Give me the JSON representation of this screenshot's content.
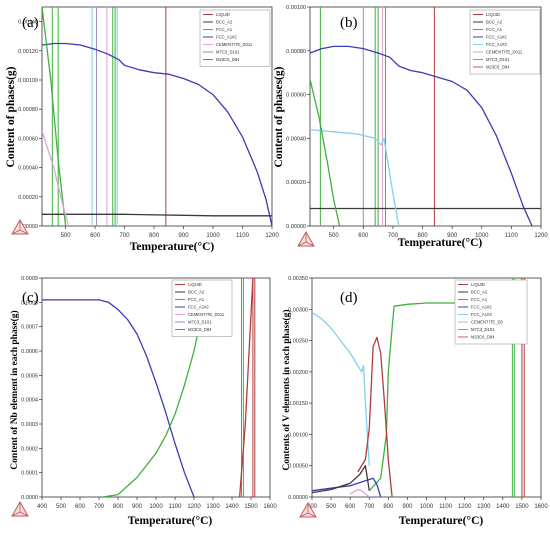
{
  "chart_data": [
    {
      "type": "line",
      "panel_label": "(a)",
      "xlabel": "Temperature(°C)",
      "ylabel": "Content of phases(g)",
      "xlim": [
        420,
        1200
      ],
      "ylim": [
        0,
        0.0015
      ],
      "x_ticks": [
        500,
        600,
        700,
        800,
        900,
        1000,
        1100,
        1200
      ],
      "x_tick_labels": [
        "500",
        "600",
        "700",
        "800",
        "900",
        "1000",
        "1100",
        "1200"
      ],
      "y_ticks": [
        0,
        0.0002,
        0.0004,
        0.0006,
        0.0008,
        0.001,
        0.0012,
        0.0014
      ],
      "y_tick_labels": [
        "0.00000",
        "0.00020",
        "0.00040",
        "0.00060",
        "0.00080",
        "0.00100",
        "0.00120",
        "0.00140"
      ],
      "legend": {
        "position": "top-right",
        "entries": [
          "LIQUID",
          "BCC_A2",
          "FCC_A1",
          "FCC_A1#2",
          "CEMENTITE_D011",
          "M7C3_D101",
          "M23C6_D84"
        ]
      },
      "series": [
        {
          "name": "FCC_A1#2",
          "color": "#3c3cb4",
          "x": [
            420,
            460,
            500,
            550,
            600,
            640,
            660,
            680,
            700,
            750,
            800,
            850,
            900,
            950,
            1000,
            1050,
            1100,
            1150,
            1180,
            1200
          ],
          "y": [
            0.00124,
            0.00125,
            0.00125,
            0.00124,
            0.00121,
            0.00118,
            0.00116,
            0.00114,
            0.0011,
            0.00107,
            0.00105,
            0.00104,
            0.00101,
            0.00097,
            0.0009,
            0.00078,
            0.00061,
            0.00037,
            0.00018,
            0.0
          ]
        },
        {
          "name": "BCC_A2",
          "color": "#3a3a3a",
          "x": [
            420,
            700,
            1000,
            1200
          ],
          "y": [
            8e-05,
            8e-05,
            7e-05,
            7e-05
          ]
        },
        {
          "name": "FCC_A1",
          "color": "#40b040",
          "x": [
            420,
            450,
            475,
            500
          ],
          "y": [
            0.0015,
            0.001,
            0.00045,
            0.0
          ]
        },
        {
          "name": "CEMENTITE_D011",
          "color": "#e4a0d8",
          "x": [
            420,
            460,
            490,
            510
          ],
          "y": [
            0.00065,
            0.0004,
            0.00015,
            0.0
          ]
        },
        {
          "name": "M23C6_D84",
          "color": "#b03c3c",
          "x": [
            840,
            840
          ],
          "y": [
            0,
            0.0015
          ]
        },
        {
          "name": "M7C3_D101",
          "color": "#9a8ac0",
          "x": [
            605,
            605
          ],
          "y": [
            0,
            0.0015
          ]
        }
      ],
      "vertical_lines": [
        {
          "x": 455,
          "color": "#40b040"
        },
        {
          "x": 475,
          "color": "#40b040"
        },
        {
          "x": 590,
          "color": "#80d0f0"
        },
        {
          "x": 605,
          "color": "#9a8ac0"
        },
        {
          "x": 640,
          "color": "#e4a0d8"
        },
        {
          "x": 660,
          "color": "#40b040"
        },
        {
          "x": 668,
          "color": "#40b040"
        },
        {
          "x": 675,
          "color": "#80d0f0"
        },
        {
          "x": 840,
          "color": "#b03c3c"
        }
      ]
    },
    {
      "type": "line",
      "panel_label": "(b)",
      "xlabel": "Temperature(°C)",
      "ylabel": "Content of phases(g)",
      "xlim": [
        420,
        1200
      ],
      "ylim": [
        0,
        0.001
      ],
      "x_ticks": [
        500,
        600,
        700,
        800,
        900,
        1000,
        1100,
        1200
      ],
      "x_tick_labels": [
        "500",
        "600",
        "700",
        "800",
        "900",
        "1000",
        "1100",
        "1200"
      ],
      "y_ticks": [
        0,
        0.0002,
        0.0004,
        0.0006,
        0.0008,
        0.001
      ],
      "y_tick_labels": [
        "0.00000",
        "0.00020",
        "0.00040",
        "0.00060",
        "0.00080",
        "0.00100"
      ],
      "legend": {
        "position": "top-right",
        "entries": [
          "LIQUID",
          "BCC_A2",
          "FCC_A1",
          "FCC_A1#2",
          "FCC_A1#3",
          "CEMENTITE_D011",
          "M7C3_D101",
          "M23C6_D84"
        ]
      },
      "series": [
        {
          "name": "FCC_A1#2",
          "color": "#3c3cb4",
          "x": [
            420,
            460,
            500,
            550,
            600,
            650,
            670,
            690,
            720,
            760,
            800,
            850,
            900,
            950,
            1000,
            1050,
            1100,
            1140,
            1170
          ],
          "y": [
            0.00079,
            0.00081,
            0.00082,
            0.00082,
            0.00081,
            0.00079,
            0.00078,
            0.00077,
            0.00073,
            0.00071,
            0.0007,
            0.00068,
            0.00066,
            0.00062,
            0.00054,
            0.00041,
            0.00024,
            9e-05,
            0.0
          ]
        },
        {
          "name": "BCC_A2",
          "color": "#3a3a3a",
          "x": [
            420,
            800,
            1200
          ],
          "y": [
            8e-05,
            8e-05,
            8e-05
          ]
        },
        {
          "name": "FCC_A1#3",
          "color": "#80d0f0",
          "x": [
            420,
            500,
            580,
            640,
            660,
            670,
            700,
            720
          ],
          "y": [
            0.00044,
            0.00043,
            0.00042,
            0.0004,
            0.00037,
            0.0004,
            0.00015,
            0.0
          ]
        },
        {
          "name": "FCC_A1",
          "color": "#40b040",
          "x": [
            420,
            450,
            480,
            500,
            520
          ],
          "y": [
            0.00067,
            0.0005,
            0.00028,
            0.00012,
            0.0
          ]
        },
        {
          "name": "M23C6_D84",
          "color": "#b03c3c",
          "x": [
            840,
            840
          ],
          "y": [
            0,
            0.001
          ]
        },
        {
          "name": "M7C3_D101",
          "color": "#9a8ac0",
          "x": [
            600,
            600
          ],
          "y": [
            0,
            0.001
          ]
        }
      ],
      "vertical_lines": [
        {
          "x": 455,
          "color": "#40b040"
        },
        {
          "x": 600,
          "color": "#9a8ac0"
        },
        {
          "x": 640,
          "color": "#40b040"
        },
        {
          "x": 650,
          "color": "#40b040"
        },
        {
          "x": 665,
          "color": "#e4a0d8"
        },
        {
          "x": 675,
          "color": "#40b040"
        },
        {
          "x": 840,
          "color": "#b03c3c"
        }
      ]
    },
    {
      "type": "line",
      "panel_label": "(c)",
      "xlabel": "Temperature(°C)",
      "ylabel": "Content of Nb element in each phase(g)",
      "xlim": [
        400,
        1600
      ],
      "ylim": [
        0,
        0.0009
      ],
      "x_ticks": [
        400,
        500,
        600,
        700,
        800,
        900,
        1000,
        1100,
        1200,
        1300,
        1400,
        1500,
        1600
      ],
      "x_tick_labels": [
        "400",
        "500",
        "600",
        "700",
        "800",
        "900",
        "1000",
        "1100",
        "1200",
        "1300",
        "1400",
        "1500",
        "1600"
      ],
      "y_ticks": [
        0,
        0.0001,
        0.0002,
        0.0003,
        0.0004,
        0.0005,
        0.0006,
        0.0007,
        0.0008,
        0.0009
      ],
      "y_tick_labels": [
        "0.0000",
        "0.0001",
        "0.0002",
        "0.0003",
        "0.0004",
        "0.0005",
        "0.0006",
        "0.0007",
        "0.0008",
        "0.0009"
      ],
      "legend": {
        "position": "top-right",
        "entries": [
          "LIQUID",
          "BCC_A2",
          "FCC_A1",
          "FCC_A1#2",
          "CEMENTITE_D011",
          "M7C3_D101",
          "M23C6_D84"
        ]
      },
      "series": [
        {
          "name": "FCC_A1#2",
          "color": "#3c3cb4",
          "x": [
            400,
            500,
            600,
            700,
            750,
            800,
            850,
            900,
            950,
            1000,
            1050,
            1100,
            1150,
            1200
          ],
          "y": [
            0.00081,
            0.00081,
            0.00081,
            0.00081,
            0.0008,
            0.00077,
            0.00073,
            0.00067,
            0.00058,
            0.00047,
            0.00035,
            0.00022,
            0.0001,
            0.0
          ]
        },
        {
          "name": "FCC_A1",
          "color": "#40b040",
          "x": [
            720,
            800,
            900,
            1000,
            1050,
            1100,
            1150,
            1200,
            1250
          ],
          "y": [
            0.0,
            1e-05,
            8e-05,
            0.00018,
            0.00025,
            0.00034,
            0.00046,
            0.0006,
            0.00078
          ]
        },
        {
          "name": "LIQUID",
          "color": "#b03c3c",
          "x": [
            1440,
            1470,
            1490,
            1510
          ],
          "y": [
            0.0,
            0.0003,
            0.0006,
            0.0009
          ]
        }
      ],
      "vertical_lines": [
        {
          "x": 1450,
          "color": "#40b040"
        },
        {
          "x": 1460,
          "color": "#40b040"
        },
        {
          "x": 1510,
          "color": "#b03c3c"
        },
        {
          "x": 1520,
          "color": "#b03c3c"
        }
      ]
    },
    {
      "type": "line",
      "panel_label": "(d)",
      "xlabel": "Temperature(°C)",
      "ylabel": "Contents of V elements in each phase(g)",
      "xlim": [
        400,
        1600
      ],
      "ylim": [
        0,
        0.0035
      ],
      "x_ticks": [
        400,
        500,
        600,
        700,
        800,
        900,
        1000,
        1100,
        1200,
        1300,
        1400,
        1500,
        1600
      ],
      "x_tick_labels": [
        "400",
        "500",
        "600",
        "700",
        "800",
        "900",
        "1000",
        "1100",
        "1200",
        "1300",
        "1400",
        "1500",
        "1600"
      ],
      "y_ticks": [
        0,
        0.0005,
        0.001,
        0.0015,
        0.002,
        0.0025,
        0.003,
        0.0035
      ],
      "y_tick_labels": [
        "0.00000",
        "0.00050",
        "0.00100",
        "0.00150",
        "0.00200",
        "0.00250",
        "0.00300",
        "0.00350"
      ],
      "legend": {
        "position": "top-right",
        "entries": [
          "LIQUID",
          "BCC_A2",
          "FCC_A1",
          "FCC_A1#2",
          "FCC_A1#3",
          "CEMENTITE_D0",
          "M7C3_D101",
          "M23C6_D84"
        ]
      },
      "series": [
        {
          "name": "FCC_A1#3",
          "color": "#80d0f0",
          "x": [
            400,
            450,
            500,
            550,
            600,
            640,
            660,
            670,
            680,
            700
          ],
          "y": [
            0.00295,
            0.00285,
            0.0027,
            0.0025,
            0.0023,
            0.0021,
            0.002,
            0.0021,
            0.0015,
            0.0005
          ]
        },
        {
          "name": "FCC_A1",
          "color": "#40b040",
          "x": [
            700,
            760,
            790,
            800,
            820,
            830,
            900,
            1000,
            1200,
            1400
          ],
          "y": [
            0.0001,
            0.0003,
            0.001,
            0.002,
            0.0027,
            0.00305,
            0.00308,
            0.0031,
            0.0031,
            0.0031
          ]
        },
        {
          "name": "M23C6_D84",
          "color": "#b03c3c",
          "x": [
            640,
            680,
            700,
            720,
            740,
            760,
            780,
            800,
            820
          ],
          "y": [
            0.0004,
            0.0006,
            0.0011,
            0.0024,
            0.00255,
            0.0023,
            0.0015,
            0.0006,
            0.0
          ]
        },
        {
          "name": "FCC_A1#2",
          "color": "#3c3cb4",
          "x": [
            400,
            500,
            600,
            650,
            700,
            720,
            740,
            760
          ],
          "y": [
            0.0001,
            0.00014,
            0.00018,
            0.00023,
            0.00028,
            0.0003,
            0.0002,
            0.0
          ]
        },
        {
          "name": "BCC_A2",
          "color": "#3a3a3a",
          "x": [
            400,
            500,
            600,
            650,
            680,
            700
          ],
          "y": [
            7e-05,
            0.00012,
            0.00022,
            0.00036,
            0.0005,
            0.0001
          ]
        },
        {
          "name": "CEMENTITE_D0",
          "color": "#e4a0d8",
          "x": [
            600,
            640,
            660,
            680,
            700
          ],
          "y": [
            5e-05,
            0.00012,
            0.0001,
            5e-05,
            0.0
          ]
        }
      ],
      "vertical_lines": [
        {
          "x": 1450,
          "color": "#40b040"
        },
        {
          "x": 1460,
          "color": "#40b040"
        },
        {
          "x": 1500,
          "color": "#b03c3c"
        },
        {
          "x": 1512,
          "color": "#b03c3c"
        }
      ]
    }
  ]
}
